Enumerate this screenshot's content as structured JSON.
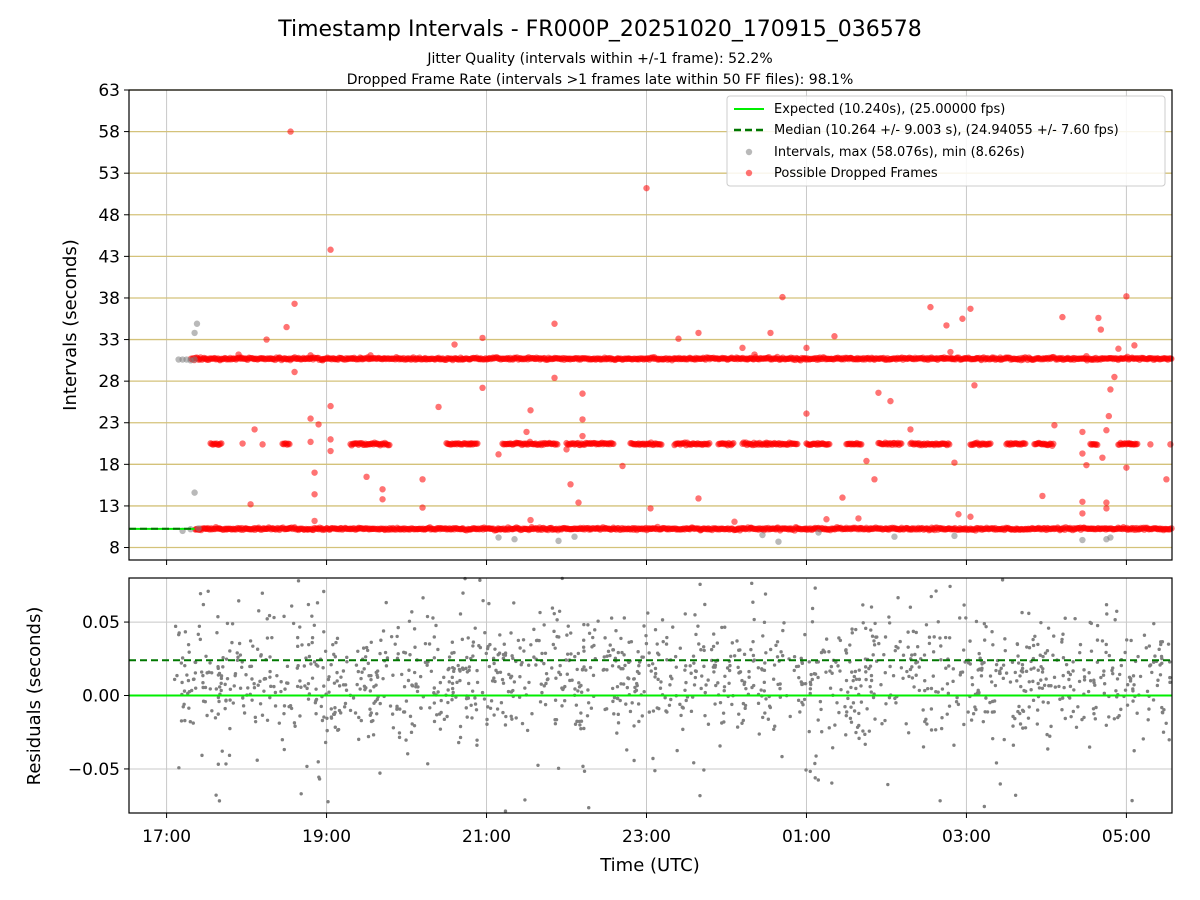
{
  "chart_data": {
    "title": "Timestamp Intervals - FR000P_20251020_170915_036578",
    "subtitles": [
      "Jitter Quality (intervals within +/-1 frame): 52.2%",
      "Dropped Frame Rate (intervals >1 frames late within 50 FF files): 98.1%"
    ],
    "xlabel": "Time (UTC)",
    "x_ticks": [
      "17:00",
      "19:00",
      "21:00",
      "23:00",
      "01:00",
      "03:00",
      "05:00"
    ],
    "x_tick_hours": [
      17,
      19,
      21,
      23,
      25,
      27,
      29
    ],
    "xlim_hours": [
      16.53,
      29.57
    ],
    "colors": {
      "expected": "#00ee00",
      "median": "#007700",
      "intervals": "#808080",
      "dropped": "#ff0000",
      "gold_grid": "#d4c27a",
      "grid": "#c8c8c8"
    },
    "top": {
      "type": "scatter",
      "ylabel": "Intervals (seconds)",
      "ylim": [
        6.5,
        63
      ],
      "y_ticks": [
        8,
        13,
        18,
        23,
        28,
        33,
        38,
        43,
        48,
        53,
        58,
        63
      ],
      "legend_position": "top-right",
      "legend": [
        "Expected (10.240s), (25.00000 fps)",
        "Median (10.264 +/- 9.003 s), (24.94055 +/- 7.60 fps)",
        "Intervals, max (58.076s), min (8.626s)",
        "Possible Dropped Frames"
      ],
      "expected_value": 10.24,
      "expected_xrange": [
        16.53,
        17.35
      ],
      "median_value": 10.264,
      "median_xrange": [
        16.53,
        17.35
      ],
      "bands": [
        {
          "y": 10.24,
          "x": [
            17.35,
            29.57
          ]
        },
        {
          "y": 30.7,
          "x": [
            17.3,
            29.57
          ]
        }
      ],
      "intervals_points": [
        [
          17.15,
          30.6
        ],
        [
          17.2,
          30.6
        ],
        [
          17.25,
          30.6
        ],
        [
          17.3,
          30.5
        ],
        [
          17.35,
          30.6
        ],
        [
          17.38,
          34.9
        ],
        [
          17.35,
          33.8
        ],
        [
          17.35,
          14.6
        ],
        [
          17.2,
          10.0
        ],
        [
          17.3,
          10.2
        ],
        [
          17.4,
          10.3
        ],
        [
          21.15,
          9.2
        ],
        [
          21.35,
          9.0
        ],
        [
          21.9,
          8.8
        ],
        [
          22.1,
          9.3
        ],
        [
          24.45,
          9.5
        ],
        [
          24.65,
          8.7
        ],
        [
          25.15,
          9.8
        ],
        [
          26.1,
          9.3
        ],
        [
          26.85,
          9.4
        ],
        [
          28.45,
          8.9
        ],
        [
          28.75,
          9.0
        ],
        [
          28.8,
          9.2
        ]
      ],
      "dropped_points": [
        [
          18.55,
          58.0
        ],
        [
          18.6,
          37.3
        ],
        [
          18.5,
          34.5
        ],
        [
          18.25,
          33.0
        ],
        [
          19.05,
          43.8
        ],
        [
          23.0,
          51.2
        ],
        [
          24.7,
          38.1
        ],
        [
          29.0,
          38.2
        ],
        [
          26.55,
          36.9
        ],
        [
          27.05,
          36.7
        ],
        [
          26.95,
          35.5
        ],
        [
          28.2,
          35.7
        ],
        [
          28.65,
          35.6
        ],
        [
          26.75,
          34.7
        ],
        [
          28.68,
          34.2
        ],
        [
          21.85,
          34.9
        ],
        [
          23.65,
          33.8
        ],
        [
          24.55,
          33.8
        ],
        [
          25.35,
          33.4
        ],
        [
          23.4,
          33.1
        ],
        [
          20.95,
          33.2
        ],
        [
          20.6,
          32.4
        ],
        [
          24.2,
          32.0
        ],
        [
          25.0,
          32.0
        ],
        [
          26.8,
          31.5
        ],
        [
          28.9,
          31.9
        ],
        [
          29.1,
          32.3
        ],
        [
          18.8,
          23.5
        ],
        [
          18.9,
          22.8
        ],
        [
          18.1,
          22.2
        ],
        [
          20.4,
          24.9
        ],
        [
          21.5,
          21.9
        ],
        [
          22.2,
          23.4
        ],
        [
          22.2,
          21.4
        ],
        [
          26.05,
          25.6
        ],
        [
          26.3,
          22.2
        ],
        [
          28.1,
          22.7
        ],
        [
          28.45,
          21.9
        ],
        [
          28.75,
          22.1
        ],
        [
          28.78,
          23.8
        ],
        [
          28.45,
          19.3
        ],
        [
          28.7,
          18.8
        ],
        [
          28.5,
          17.9
        ],
        [
          29.0,
          17.6
        ],
        [
          21.15,
          19.2
        ],
        [
          22.0,
          19.8
        ],
        [
          22.7,
          17.8
        ],
        [
          25.75,
          18.4
        ],
        [
          26.85,
          18.2
        ],
        [
          21.55,
          24.5
        ],
        [
          18.85,
          17.0
        ],
        [
          19.05,
          19.6
        ],
        [
          19.5,
          16.5
        ],
        [
          19.7,
          15.0
        ],
        [
          19.7,
          13.8
        ],
        [
          19.05,
          25.0
        ],
        [
          20.95,
          27.2
        ],
        [
          21.85,
          28.4
        ],
        [
          22.2,
          26.5
        ],
        [
          25.0,
          24.1
        ],
        [
          25.9,
          26.6
        ],
        [
          27.1,
          27.5
        ],
        [
          28.8,
          27.0
        ],
        [
          28.85,
          28.5
        ],
        [
          18.6,
          29.1
        ],
        [
          22.05,
          15.6
        ],
        [
          22.15,
          13.4
        ],
        [
          20.2,
          16.2
        ],
        [
          25.85,
          16.2
        ],
        [
          23.65,
          13.9
        ],
        [
          25.45,
          14.0
        ],
        [
          27.95,
          14.2
        ],
        [
          28.45,
          13.5
        ],
        [
          28.75,
          13.4
        ],
        [
          28.75,
          12.7
        ],
        [
          20.2,
          12.8
        ],
        [
          21.55,
          11.3
        ],
        [
          23.05,
          12.7
        ],
        [
          18.05,
          13.2
        ],
        [
          18.85,
          11.2
        ],
        [
          24.1,
          11.1
        ],
        [
          25.25,
          11.4
        ],
        [
          25.65,
          11.5
        ],
        [
          26.9,
          12.0
        ],
        [
          27.05,
          11.7
        ],
        [
          28.45,
          12.1
        ],
        [
          18.85,
          14.4
        ],
        [
          29.5,
          16.2
        ],
        [
          17.95,
          20.5
        ],
        [
          18.2,
          20.4
        ],
        [
          20.8,
          20.4
        ],
        [
          24.5,
          20.6
        ],
        [
          27.3,
          20.5
        ],
        [
          29.05,
          20.5
        ],
        [
          29.3,
          20.4
        ],
        [
          29.55,
          20.4
        ],
        [
          19.05,
          21.0
        ],
        [
          18.8,
          20.7
        ],
        [
          18.95,
          30.5
        ],
        [
          18.8,
          31.1
        ],
        [
          17.9,
          31.2
        ],
        [
          19.55,
          31.1
        ],
        [
          24.35,
          31.2
        ],
        [
          28.5,
          31.0
        ]
      ]
    },
    "bottom": {
      "type": "scatter",
      "ylabel": "Residuals (seconds)",
      "ylim": [
        -0.08,
        0.08
      ],
      "y_ticks": [
        -0.05,
        0.0,
        0.05
      ],
      "y_tick_labels": [
        "−0.05",
        "0.00",
        "0.05"
      ],
      "expected_value": 0.0,
      "median_value": 0.024,
      "xrange": [
        16.53,
        29.57
      ],
      "points_description_note": "",
      "points_x_range": [
        17.1,
        29.55
      ],
      "points_count": 1450,
      "points_core_spread": 0.022,
      "points_tail_extent": 0.08
    }
  }
}
